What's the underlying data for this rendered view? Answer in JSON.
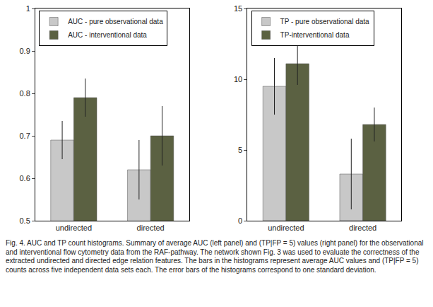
{
  "chart_data": [
    {
      "type": "bar",
      "categories": [
        "undirected",
        "directed"
      ],
      "series": [
        {
          "name": "AUC - pure observational data",
          "color": "#c8c8c8",
          "values": [
            0.69,
            0.62
          ],
          "errors": [
            0.045,
            0.07
          ]
        },
        {
          "name": "AUC - interventional data",
          "color": "#5b6142",
          "values": [
            0.79,
            0.7
          ],
          "errors": [
            0.045,
            0.07
          ]
        }
      ],
      "ylim": [
        0.5,
        1
      ],
      "yticks": [
        0.5,
        0.6,
        0.7,
        0.8,
        0.9,
        1
      ],
      "grid": false,
      "legend": "upper left"
    },
    {
      "type": "bar",
      "categories": [
        "undirected",
        "directed"
      ],
      "series": [
        {
          "name": "TP - pure observational data",
          "color": "#c8c8c8",
          "values": [
            9.5,
            3.3
          ],
          "errors": [
            2.0,
            2.5
          ]
        },
        {
          "name": "TP-interventional data",
          "color": "#5b6142",
          "values": [
            11.1,
            6.8
          ],
          "errors": [
            1.5,
            1.2
          ]
        }
      ],
      "ylim": [
        0,
        15
      ],
      "yticks": [
        0,
        5,
        10,
        15
      ],
      "grid": false,
      "legend": "upper left"
    }
  ],
  "caption": "Fig. 4. AUC and TP count histograms. Summary of average AUC (left panel) and (TP|FP = 5) values (right panel) for the observational and interventional flow cytometry data from the RAF-pathway. The network shown Fig. 3 was used to evaluate the correctness of the extracted undirected and directed edge relation features. The bars in the histograms represent average AUC values and (TP|FP = 5) counts across five independent data sets each. The error bars of the histograms correspond to one standard deviation."
}
